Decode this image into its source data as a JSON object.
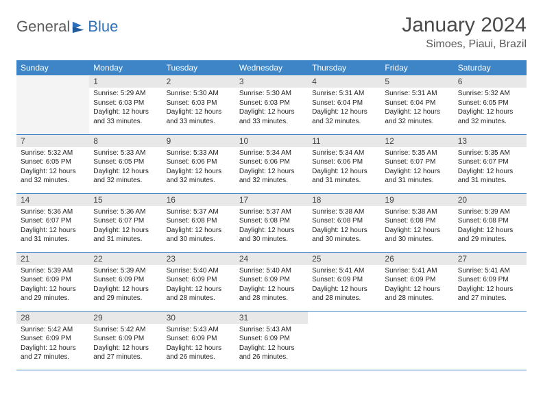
{
  "logo": {
    "general": "General",
    "blue": "Blue"
  },
  "title": "January 2024",
  "location": "Simoes, Piaui, Brazil",
  "colors": {
    "header_bg": "#3d85c6",
    "header_fg": "#ffffff",
    "daynum_bg": "#e8e8e8",
    "row_border": "#3d85c6",
    "logo_general": "#5b5b5b",
    "logo_blue": "#2d6fb8",
    "title_color": "#4a4a4a",
    "body_text": "#222222"
  },
  "dayNames": [
    "Sunday",
    "Monday",
    "Tuesday",
    "Wednesday",
    "Thursday",
    "Friday",
    "Saturday"
  ],
  "startWeekday": 1,
  "daysInMonth": 31,
  "days": {
    "1": {
      "sunrise": "5:29 AM",
      "sunset": "6:03 PM",
      "daylight": "12 hours and 33 minutes."
    },
    "2": {
      "sunrise": "5:30 AM",
      "sunset": "6:03 PM",
      "daylight": "12 hours and 33 minutes."
    },
    "3": {
      "sunrise": "5:30 AM",
      "sunset": "6:03 PM",
      "daylight": "12 hours and 33 minutes."
    },
    "4": {
      "sunrise": "5:31 AM",
      "sunset": "6:04 PM",
      "daylight": "12 hours and 32 minutes."
    },
    "5": {
      "sunrise": "5:31 AM",
      "sunset": "6:04 PM",
      "daylight": "12 hours and 32 minutes."
    },
    "6": {
      "sunrise": "5:32 AM",
      "sunset": "6:05 PM",
      "daylight": "12 hours and 32 minutes."
    },
    "7": {
      "sunrise": "5:32 AM",
      "sunset": "6:05 PM",
      "daylight": "12 hours and 32 minutes."
    },
    "8": {
      "sunrise": "5:33 AM",
      "sunset": "6:05 PM",
      "daylight": "12 hours and 32 minutes."
    },
    "9": {
      "sunrise": "5:33 AM",
      "sunset": "6:06 PM",
      "daylight": "12 hours and 32 minutes."
    },
    "10": {
      "sunrise": "5:34 AM",
      "sunset": "6:06 PM",
      "daylight": "12 hours and 32 minutes."
    },
    "11": {
      "sunrise": "5:34 AM",
      "sunset": "6:06 PM",
      "daylight": "12 hours and 31 minutes."
    },
    "12": {
      "sunrise": "5:35 AM",
      "sunset": "6:07 PM",
      "daylight": "12 hours and 31 minutes."
    },
    "13": {
      "sunrise": "5:35 AM",
      "sunset": "6:07 PM",
      "daylight": "12 hours and 31 minutes."
    },
    "14": {
      "sunrise": "5:36 AM",
      "sunset": "6:07 PM",
      "daylight": "12 hours and 31 minutes."
    },
    "15": {
      "sunrise": "5:36 AM",
      "sunset": "6:07 PM",
      "daylight": "12 hours and 31 minutes."
    },
    "16": {
      "sunrise": "5:37 AM",
      "sunset": "6:08 PM",
      "daylight": "12 hours and 30 minutes."
    },
    "17": {
      "sunrise": "5:37 AM",
      "sunset": "6:08 PM",
      "daylight": "12 hours and 30 minutes."
    },
    "18": {
      "sunrise": "5:38 AM",
      "sunset": "6:08 PM",
      "daylight": "12 hours and 30 minutes."
    },
    "19": {
      "sunrise": "5:38 AM",
      "sunset": "6:08 PM",
      "daylight": "12 hours and 30 minutes."
    },
    "20": {
      "sunrise": "5:39 AM",
      "sunset": "6:08 PM",
      "daylight": "12 hours and 29 minutes."
    },
    "21": {
      "sunrise": "5:39 AM",
      "sunset": "6:09 PM",
      "daylight": "12 hours and 29 minutes."
    },
    "22": {
      "sunrise": "5:39 AM",
      "sunset": "6:09 PM",
      "daylight": "12 hours and 29 minutes."
    },
    "23": {
      "sunrise": "5:40 AM",
      "sunset": "6:09 PM",
      "daylight": "12 hours and 28 minutes."
    },
    "24": {
      "sunrise": "5:40 AM",
      "sunset": "6:09 PM",
      "daylight": "12 hours and 28 minutes."
    },
    "25": {
      "sunrise": "5:41 AM",
      "sunset": "6:09 PM",
      "daylight": "12 hours and 28 minutes."
    },
    "26": {
      "sunrise": "5:41 AM",
      "sunset": "6:09 PM",
      "daylight": "12 hours and 28 minutes."
    },
    "27": {
      "sunrise": "5:41 AM",
      "sunset": "6:09 PM",
      "daylight": "12 hours and 27 minutes."
    },
    "28": {
      "sunrise": "5:42 AM",
      "sunset": "6:09 PM",
      "daylight": "12 hours and 27 minutes."
    },
    "29": {
      "sunrise": "5:42 AM",
      "sunset": "6:09 PM",
      "daylight": "12 hours and 27 minutes."
    },
    "30": {
      "sunrise": "5:43 AM",
      "sunset": "6:09 PM",
      "daylight": "12 hours and 26 minutes."
    },
    "31": {
      "sunrise": "5:43 AM",
      "sunset": "6:09 PM",
      "daylight": "12 hours and 26 minutes."
    }
  },
  "labels": {
    "sunrise": "Sunrise: ",
    "sunset": "Sunset: ",
    "daylight": "Daylight: "
  }
}
